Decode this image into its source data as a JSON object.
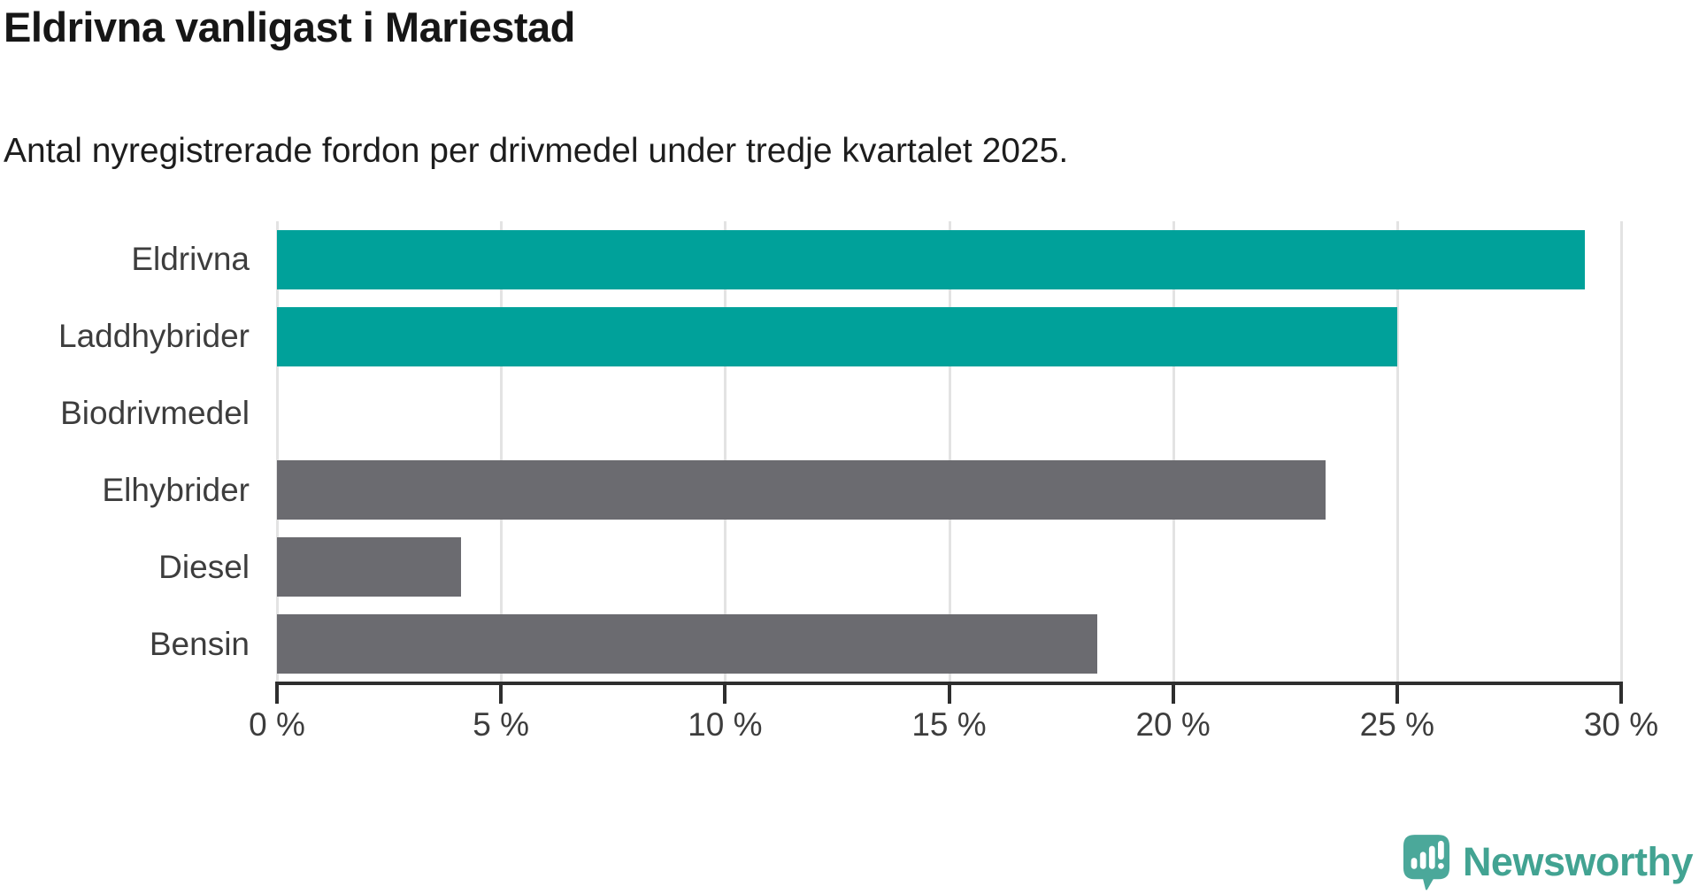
{
  "title": "Eldrivna vanligast i Mariestad",
  "subtitle": "Antal nyregistrerade fordon per drivmedel under tredje kvartalet 2025.",
  "colors": {
    "highlight": "#00a19a",
    "neutral": "#6b6b70",
    "gridline": "#e3e3e3",
    "axis": "#2e2e2e",
    "logo": "#42a392"
  },
  "chart_data": {
    "type": "bar",
    "orientation": "horizontal",
    "title": "Eldrivna vanligast i Mariestad",
    "subtitle": "Antal nyregistrerade fordon per drivmedel under tredje kvartalet 2025.",
    "categories": [
      "Eldrivna",
      "Laddhybrider",
      "Biodrivmedel",
      "Elhybrider",
      "Diesel",
      "Bensin"
    ],
    "values": [
      29.2,
      25.0,
      0.0,
      23.4,
      4.1,
      18.3
    ],
    "bar_colors": [
      "#00a19a",
      "#00a19a",
      "#00a19a",
      "#6b6b70",
      "#6b6b70",
      "#6b6b70"
    ],
    "unit": "%",
    "xlim": [
      0,
      30
    ],
    "x_ticks": [
      {
        "value": 0,
        "label": "0 %"
      },
      {
        "value": 5,
        "label": "5 %"
      },
      {
        "value": 10,
        "label": "10 %"
      },
      {
        "value": 15,
        "label": "15 %"
      },
      {
        "value": 20,
        "label": "20 %"
      },
      {
        "value": 25,
        "label": "25 %"
      },
      {
        "value": 30,
        "label": "30 %"
      }
    ],
    "grid": true,
    "legend": false
  },
  "logo": {
    "text": "Newsworthy",
    "icon": "speech-bubble-bar-chart-exclamation"
  }
}
